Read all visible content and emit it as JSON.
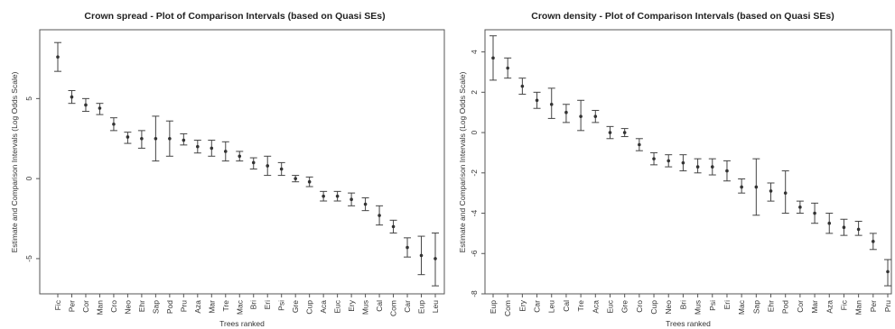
{
  "chart_data": [
    {
      "type": "errorbar",
      "title": "Crown spread - Plot of Comparison Intervals (based on Quasi SEs)",
      "xlabel": "Trees ranked",
      "ylabel": "Estimate and Comparison Intervals (Log Odds Scale)",
      "ylim": [
        -7.2,
        9.3
      ],
      "yticks": [
        -5,
        0,
        5
      ],
      "categories": [
        "Fic",
        "Per",
        "Cor",
        "Man",
        "Cro",
        "Neo",
        "Ehr",
        "Sap",
        "Pod",
        "Pru",
        "Aza",
        "Mar",
        "Tre",
        "Mac",
        "Bri",
        "Eri",
        "Psi",
        "Gre",
        "Cup",
        "Aca",
        "Euc",
        "Ery",
        "Mus",
        "Cal",
        "Com",
        "Car",
        "Eup",
        "Leu"
      ],
      "values": [
        7.6,
        5.1,
        4.6,
        4.4,
        3.4,
        2.6,
        2.5,
        2.5,
        2.5,
        2.4,
        2.0,
        1.9,
        1.7,
        1.4,
        1.0,
        0.8,
        0.6,
        0.0,
        -0.2,
        -1.1,
        -1.1,
        -1.3,
        -1.6,
        -2.3,
        -3.0,
        -4.3,
        -4.8,
        -5.0
      ],
      "lower": [
        6.7,
        4.7,
        4.2,
        4.0,
        3.0,
        2.2,
        1.9,
        1.1,
        1.4,
        2.1,
        1.6,
        1.4,
        1.1,
        1.1,
        0.6,
        0.2,
        0.2,
        -0.2,
        -0.5,
        -1.4,
        -1.4,
        -1.7,
        -2.0,
        -2.9,
        -3.4,
        -4.9,
        -6.0,
        -6.7
      ],
      "upper": [
        8.5,
        5.5,
        5.0,
        4.7,
        3.8,
        2.9,
        3.0,
        3.9,
        3.6,
        2.8,
        2.4,
        2.4,
        2.3,
        1.7,
        1.3,
        1.4,
        1.0,
        0.2,
        0.1,
        -0.8,
        -0.8,
        -0.9,
        -1.2,
        -1.7,
        -2.6,
        -3.7,
        -3.6,
        -3.4
      ]
    },
    {
      "type": "errorbar",
      "title": "Crown density - Plot of Comparison Intervals (based on Quasi SEs)",
      "xlabel": "Trees ranked",
      "ylabel": "Estimate and Comparison Intervals (Log Odds Scale)",
      "ylim": [
        -8.0,
        5.1
      ],
      "yticks": [
        -8,
        -6,
        -4,
        -2,
        0,
        2,
        4
      ],
      "categories": [
        "Eup",
        "Com",
        "Ery",
        "Car",
        "Leu",
        "Cal",
        "Tre",
        "Aca",
        "Euc",
        "Gre",
        "Cro",
        "Cup",
        "Neo",
        "Bri",
        "Mus",
        "Psi",
        "Eri",
        "Mac",
        "Sap",
        "Ehr",
        "Pod",
        "Cor",
        "Mar",
        "Aza",
        "Fic",
        "Man",
        "Per",
        "Pru"
      ],
      "values": [
        3.7,
        3.2,
        2.3,
        1.6,
        1.4,
        1.0,
        0.8,
        0.8,
        0.0,
        0.0,
        -0.6,
        -1.3,
        -1.4,
        -1.5,
        -1.7,
        -1.7,
        -1.9,
        -2.7,
        -2.7,
        -2.9,
        -3.0,
        -3.7,
        -4.0,
        -4.5,
        -4.7,
        -4.8,
        -5.4,
        -6.9
      ],
      "lower": [
        2.6,
        2.7,
        1.9,
        1.2,
        0.7,
        0.5,
        0.1,
        0.5,
        -0.3,
        -0.2,
        -0.9,
        -1.6,
        -1.7,
        -1.9,
        -2.0,
        -2.1,
        -2.4,
        -3.0,
        -4.1,
        -3.4,
        -4.0,
        -4.0,
        -4.5,
        -5.0,
        -5.1,
        -5.1,
        -5.8,
        -7.6
      ],
      "upper": [
        4.8,
        3.7,
        2.7,
        2.0,
        2.2,
        1.4,
        1.6,
        1.1,
        0.3,
        0.2,
        -0.3,
        -1.0,
        -1.1,
        -1.1,
        -1.3,
        -1.3,
        -1.4,
        -2.3,
        -1.3,
        -2.5,
        -1.9,
        -3.4,
        -3.5,
        -4.0,
        -4.3,
        -4.4,
        -5.0,
        -6.3
      ]
    }
  ]
}
